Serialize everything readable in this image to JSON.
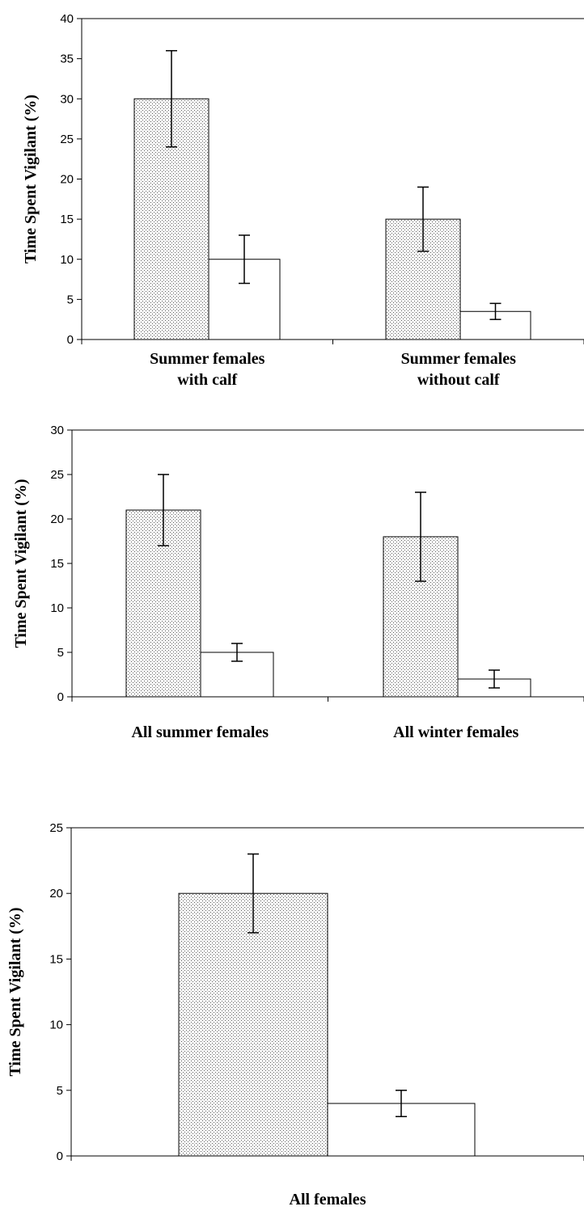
{
  "chart_data": [
    {
      "type": "bar",
      "ylabel": "Time Spent Vigilant (%)",
      "ylim": [
        0,
        40
      ],
      "yticks": [
        "0",
        "5",
        "10",
        "15",
        "20",
        "25",
        "30",
        "35",
        "40"
      ],
      "grid": false,
      "categories": [
        {
          "lines": [
            "Summer females",
            "with calf"
          ]
        },
        {
          "lines": [
            "Summer females",
            "without calf"
          ]
        }
      ],
      "series": [
        {
          "style": "dotted-gray",
          "values": [
            30,
            15
          ],
          "errors": [
            [
              24,
              36
            ],
            [
              11,
              19
            ]
          ]
        },
        {
          "style": "white",
          "values": [
            10,
            3.5
          ],
          "errors": [
            [
              7,
              13
            ],
            [
              2.5,
              4.5
            ]
          ]
        }
      ]
    },
    {
      "type": "bar",
      "ylabel": "Time Spent Vigilant (%)",
      "ylim": [
        0,
        30
      ],
      "yticks": [
        "0",
        "5",
        "10",
        "15",
        "20",
        "25",
        "30"
      ],
      "grid": false,
      "categories": [
        {
          "lines": [
            "All summer females"
          ]
        },
        {
          "lines": [
            "All winter females"
          ]
        }
      ],
      "series": [
        {
          "style": "dotted-gray",
          "values": [
            21,
            18
          ],
          "errors": [
            [
              17,
              25
            ],
            [
              13,
              23
            ]
          ]
        },
        {
          "style": "white",
          "values": [
            5,
            2
          ],
          "errors": [
            [
              4,
              6
            ],
            [
              1,
              3
            ]
          ]
        }
      ]
    },
    {
      "type": "bar",
      "ylabel": "Time Spent Vigilant (%)",
      "ylim": [
        0,
        25
      ],
      "yticks": [
        "0",
        "5",
        "10",
        "15",
        "20",
        "25"
      ],
      "grid": false,
      "categories": [
        {
          "lines": [
            "All females"
          ]
        }
      ],
      "series": [
        {
          "style": "dotted-gray",
          "values": [
            20
          ],
          "errors": [
            [
              17,
              23
            ]
          ]
        },
        {
          "style": "white",
          "values": [
            4
          ],
          "errors": [
            [
              3,
              5
            ]
          ]
        }
      ]
    }
  ]
}
